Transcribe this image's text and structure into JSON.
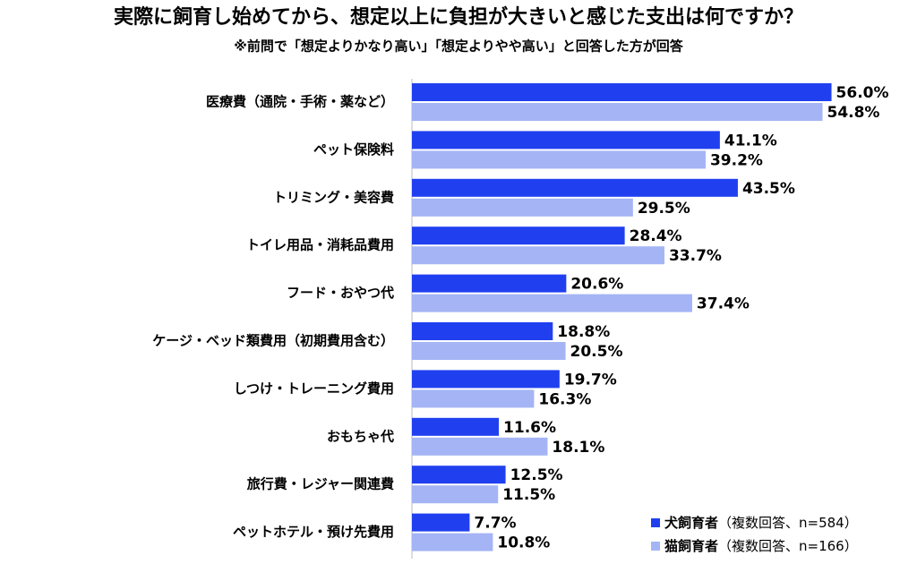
{
  "chart_data": {
    "type": "hbar",
    "title": "実際に飼育し始めてから、想定以上に負担が大きいと感じた支出は何ですか？",
    "subtitle": "※前問で「想定よりかなり高い」「想定よりやや高い」と回答した方が回答",
    "categories": [
      "医療費（通院・手術・薬など）",
      "ペット保険料",
      "トリミング・美容費",
      "トイレ用品・消耗品費用",
      "フード・おやつ代",
      "ケージ・ベッド類費用（初期費用含む）",
      "しつけ・トレーニング費用",
      "おもちゃ代",
      "旅行費・レジャー関連費",
      "ペットホテル・預け先費用"
    ],
    "series": [
      {
        "name": "犬飼育者",
        "note": "（複数回答、n=584）",
        "color": "#2040f0",
        "values": [
          56.0,
          41.1,
          43.5,
          28.4,
          20.6,
          18.8,
          19.7,
          11.6,
          12.5,
          7.7
        ],
        "value_labels": [
          "56.0%",
          "41.1%",
          "43.5%",
          "28.4%",
          "20.6%",
          "18.8%",
          "19.7%",
          "11.6%",
          "12.5%",
          "7.7%"
        ]
      },
      {
        "name": "猫飼育者",
        "note": "（複数回答、n=166）",
        "color": "#a4b4f5",
        "values": [
          54.8,
          39.2,
          29.5,
          33.7,
          37.4,
          20.5,
          16.3,
          18.1,
          11.5,
          10.8
        ],
        "value_labels": [
          "54.8%",
          "39.2%",
          "29.5%",
          "33.7%",
          "37.4%",
          "20.5%",
          "16.3%",
          "18.1%",
          "11.5%",
          "10.8%"
        ]
      }
    ],
    "xlim": [
      0,
      60
    ]
  }
}
